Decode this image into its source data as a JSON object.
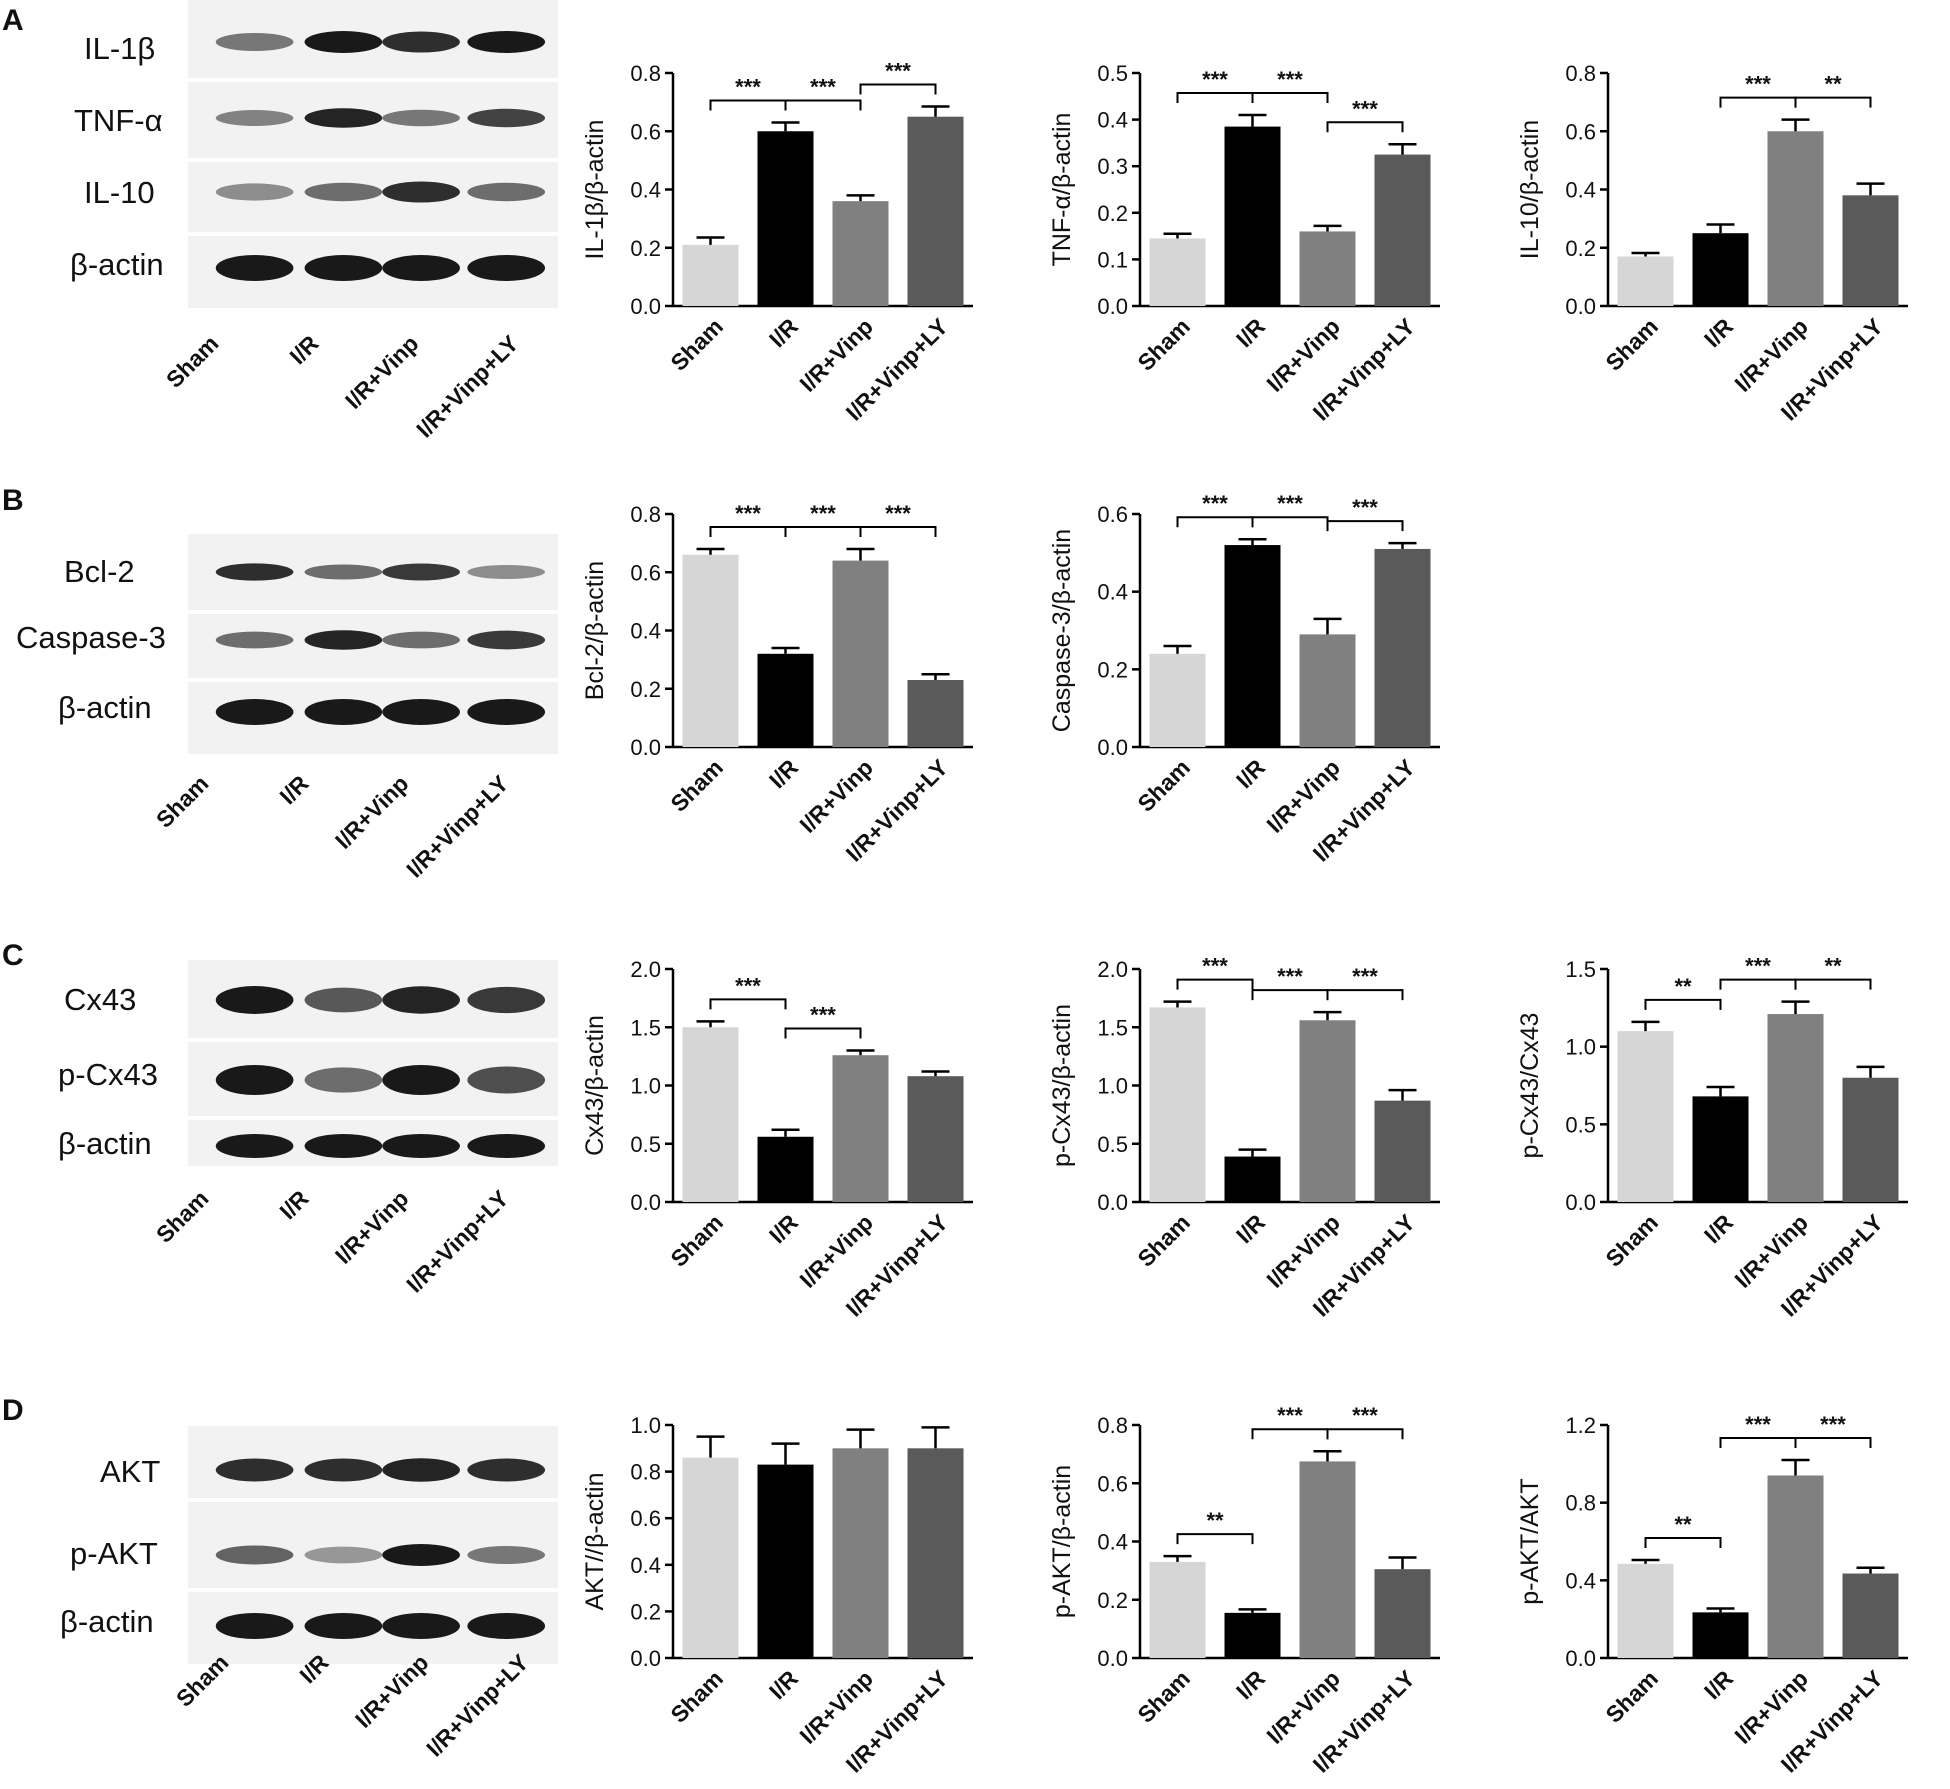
{
  "figure": {
    "panels": [
      {
        "letter": "A",
        "blot": {
          "bands": [
            "IL-1β",
            "TNF-α",
            "IL-10",
            "β-actin"
          ],
          "lanes": [
            "Sham",
            "I/R",
            "I/R+Vinp",
            "I/R+Vinp+LY"
          ]
        }
      },
      {
        "letter": "B",
        "blot": {
          "bands": [
            "Bcl-2",
            "Caspase-3",
            "β-actin"
          ],
          "lanes": [
            "Sham",
            "I/R",
            "I/R+Vinp",
            "I/R+Vinp+LY"
          ]
        }
      },
      {
        "letter": "C",
        "blot": {
          "bands": [
            "Cx43",
            "p-Cx43",
            "β-actin"
          ],
          "lanes": [
            "Sham",
            "I/R",
            "I/R+Vinp",
            "I/R+Vinp+LY"
          ]
        }
      },
      {
        "letter": "D",
        "blot": {
          "bands": [
            "AKT",
            "p-AKT",
            "β-actin"
          ],
          "lanes": [
            "Sham",
            "I/R",
            "I/R+Vinp",
            "I/R+Vinp+LY"
          ]
        }
      }
    ]
  },
  "colors": {
    "Sham": "#d6d6d6",
    "I/R": "#000000",
    "I/R+Vinp": "#808080",
    "I/R+Vinp+LY": "#5a5a5a"
  },
  "chart_data": [
    {
      "type": "bar",
      "panel": "A",
      "ylabel": "IL-1β/β-actin",
      "categories": [
        "Sham",
        "I/R",
        "I/R+Vinp",
        "I/R+Vinp+LY"
      ],
      "values": [
        0.21,
        0.6,
        0.36,
        0.65
      ],
      "errors": [
        0.025,
        0.03,
        0.02,
        0.035
      ],
      "ylim": [
        0,
        0.8
      ],
      "yticks": [
        "0.0",
        "0.2",
        "0.4",
        "0.6",
        "0.8"
      ],
      "sig": [
        {
          "from": 0,
          "to": 1,
          "label": "***"
        },
        {
          "from": 1,
          "to": 2,
          "label": "***"
        },
        {
          "from": 2,
          "to": 3,
          "label": "***"
        }
      ]
    },
    {
      "type": "bar",
      "panel": "A",
      "ylabel": "TNF-α/β-actin",
      "categories": [
        "Sham",
        "I/R",
        "I/R+Vinp",
        "I/R+Vinp+LY"
      ],
      "values": [
        0.145,
        0.385,
        0.16,
        0.325
      ],
      "errors": [
        0.01,
        0.025,
        0.012,
        0.022
      ],
      "ylim": [
        0,
        0.5
      ],
      "yticks": [
        "0.0",
        "0.1",
        "0.2",
        "0.3",
        "0.4",
        "0.5"
      ],
      "sig": [
        {
          "from": 0,
          "to": 1,
          "label": "***"
        },
        {
          "from": 1,
          "to": 2,
          "label": "***"
        },
        {
          "from": 2,
          "to": 3,
          "label": "***"
        }
      ]
    },
    {
      "type": "bar",
      "panel": "A",
      "ylabel": "IL-10/β-actin",
      "categories": [
        "Sham",
        "I/R",
        "I/R+Vinp",
        "I/R+Vinp+LY"
      ],
      "values": [
        0.17,
        0.25,
        0.6,
        0.38
      ],
      "errors": [
        0.012,
        0.03,
        0.04,
        0.04
      ],
      "ylim": [
        0,
        0.8
      ],
      "yticks": [
        "0.0",
        "0.2",
        "0.4",
        "0.6",
        "0.8"
      ],
      "sig": [
        {
          "from": 1,
          "to": 2,
          "label": "***"
        },
        {
          "from": 2,
          "to": 3,
          "label": "**"
        }
      ]
    },
    {
      "type": "bar",
      "panel": "B",
      "ylabel": "Bcl-2/β-actin",
      "categories": [
        "Sham",
        "I/R",
        "I/R+Vinp",
        "I/R+Vinp+LY"
      ],
      "values": [
        0.66,
        0.32,
        0.64,
        0.23
      ],
      "errors": [
        0.02,
        0.02,
        0.04,
        0.02
      ],
      "ylim": [
        0,
        0.8
      ],
      "yticks": [
        "0.0",
        "0.2",
        "0.4",
        "0.6",
        "0.8"
      ],
      "sig": [
        {
          "from": 0,
          "to": 1,
          "label": "***"
        },
        {
          "from": 1,
          "to": 2,
          "label": "***"
        },
        {
          "from": 2,
          "to": 3,
          "label": "***"
        }
      ]
    },
    {
      "type": "bar",
      "panel": "B",
      "ylabel": "Caspase-3/β-actin",
      "categories": [
        "Sham",
        "I/R",
        "I/R+Vinp",
        "I/R+Vinp+LY"
      ],
      "values": [
        0.24,
        0.52,
        0.29,
        0.51
      ],
      "errors": [
        0.02,
        0.015,
        0.04,
        0.015
      ],
      "ylim": [
        0,
        0.6
      ],
      "yticks": [
        "0.0",
        "0.2",
        "0.4",
        "0.6"
      ],
      "sig": [
        {
          "from": 0,
          "to": 1,
          "label": "***"
        },
        {
          "from": 1,
          "to": 2,
          "label": "***"
        },
        {
          "from": 2,
          "to": 3,
          "label": "***"
        }
      ]
    },
    {
      "type": "bar",
      "panel": "C",
      "ylabel": "Cx43/β-actin",
      "categories": [
        "Sham",
        "I/R",
        "I/R+Vinp",
        "I/R+Vinp+LY"
      ],
      "values": [
        1.5,
        0.56,
        1.26,
        1.08
      ],
      "errors": [
        0.05,
        0.06,
        0.04,
        0.04
      ],
      "ylim": [
        0,
        2.0
      ],
      "yticks": [
        "0.0",
        "0.5",
        "1.0",
        "1.5",
        "2.0"
      ],
      "sig": [
        {
          "from": 0,
          "to": 1,
          "label": "***"
        },
        {
          "from": 1,
          "to": 2,
          "label": "***"
        }
      ]
    },
    {
      "type": "bar",
      "panel": "C",
      "ylabel": "p-Cx43/β-actin",
      "categories": [
        "Sham",
        "I/R",
        "I/R+Vinp",
        "I/R+Vinp+LY"
      ],
      "values": [
        1.67,
        0.39,
        1.56,
        0.87
      ],
      "errors": [
        0.05,
        0.06,
        0.07,
        0.09
      ],
      "ylim": [
        0,
        2.0
      ],
      "yticks": [
        "0.0",
        "0.5",
        "1.0",
        "1.5",
        "2.0"
      ],
      "sig": [
        {
          "from": 0,
          "to": 1,
          "label": "***"
        },
        {
          "from": 1,
          "to": 2,
          "label": "***"
        },
        {
          "from": 2,
          "to": 3,
          "label": "***"
        }
      ]
    },
    {
      "type": "bar",
      "panel": "C",
      "ylabel": "p-Cx43/Cx43",
      "categories": [
        "Sham",
        "I/R",
        "I/R+Vinp",
        "I/R+Vinp+LY"
      ],
      "values": [
        1.1,
        0.68,
        1.21,
        0.8
      ],
      "errors": [
        0.06,
        0.06,
        0.08,
        0.07
      ],
      "ylim": [
        0,
        1.5
      ],
      "yticks": [
        "0.0",
        "0.5",
        "1.0",
        "1.5"
      ],
      "sig": [
        {
          "from": 0,
          "to": 1,
          "label": "**"
        },
        {
          "from": 1,
          "to": 2,
          "label": "***"
        },
        {
          "from": 2,
          "to": 3,
          "label": "**"
        }
      ]
    },
    {
      "type": "bar",
      "panel": "D",
      "ylabel": "AKT//β-actin",
      "categories": [
        "Sham",
        "I/R",
        "I/R+Vinp",
        "I/R+Vinp+LY"
      ],
      "values": [
        0.86,
        0.83,
        0.9,
        0.9
      ],
      "errors": [
        0.09,
        0.09,
        0.08,
        0.09
      ],
      "ylim": [
        0,
        1.0
      ],
      "yticks": [
        "0.0",
        "0.2",
        "0.4",
        "0.6",
        "0.8",
        "1.0"
      ],
      "sig": []
    },
    {
      "type": "bar",
      "panel": "D",
      "ylabel": "p-AKT/β-actin",
      "categories": [
        "Sham",
        "I/R",
        "I/R+Vinp",
        "I/R+Vinp+LY"
      ],
      "values": [
        0.33,
        0.155,
        0.675,
        0.305
      ],
      "errors": [
        0.02,
        0.012,
        0.035,
        0.04
      ],
      "ylim": [
        0,
        0.8
      ],
      "yticks": [
        "0.0",
        "0.2",
        "0.4",
        "0.6",
        "0.8"
      ],
      "sig": [
        {
          "from": 0,
          "to": 1,
          "label": "**"
        },
        {
          "from": 1,
          "to": 2,
          "label": "***"
        },
        {
          "from": 2,
          "to": 3,
          "label": "***"
        }
      ]
    },
    {
      "type": "bar",
      "panel": "D",
      "ylabel": "p-AKT/AKT",
      "categories": [
        "Sham",
        "I/R",
        "I/R+Vinp",
        "I/R+Vinp+LY"
      ],
      "values": [
        0.485,
        0.235,
        0.94,
        0.435
      ],
      "errors": [
        0.02,
        0.02,
        0.08,
        0.03
      ],
      "ylim": [
        0,
        1.2
      ],
      "yticks": [
        "0.0",
        "0.4",
        "0.8",
        "1.2"
      ],
      "sig": [
        {
          "from": 0,
          "to": 1,
          "label": "**"
        },
        {
          "from": 1,
          "to": 2,
          "label": "***"
        },
        {
          "from": 2,
          "to": 3,
          "label": "***"
        }
      ]
    }
  ]
}
